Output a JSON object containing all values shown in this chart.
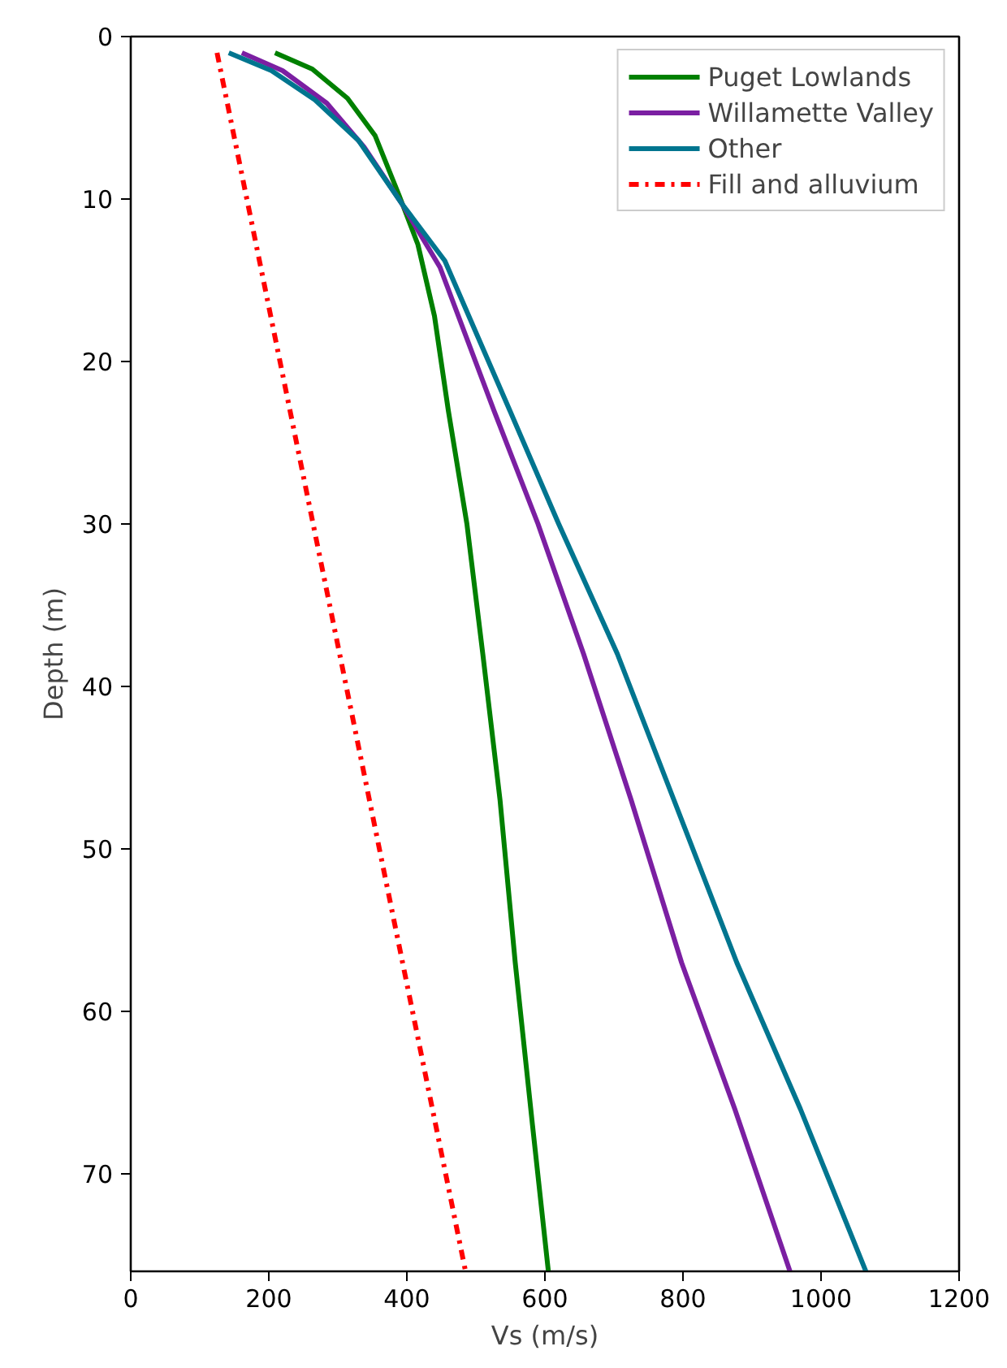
{
  "chart_data": {
    "type": "line",
    "xlabel": "Vs (m/s)",
    "ylabel": "Depth (m)",
    "xlim": [
      0,
      1200
    ],
    "xticks": [
      0,
      200,
      400,
      600,
      800,
      1000,
      1200
    ],
    "ylim": [
      76,
      0
    ],
    "yticks": [
      0,
      10,
      20,
      30,
      40,
      50,
      60,
      70
    ],
    "grid": false,
    "legend": "top right",
    "marker": "none",
    "series": [
      {
        "name": "Puget Lowlands",
        "color": "#008000",
        "line_style": "solid",
        "x": [
          209,
          263,
          314,
          354,
          389,
          416,
          440,
          460,
          487,
          510,
          535,
          557,
          582,
          605
        ],
        "values": [
          1,
          2,
          3.8,
          6.1,
          9.8,
          12.8,
          17.2,
          23,
          30,
          38,
          47,
          57,
          67,
          76
        ]
      },
      {
        "name": "Willamette Valley",
        "color": "#7b1fa2",
        "line_style": "solid",
        "x": [
          161,
          220,
          284,
          338,
          393,
          448,
          526,
          590,
          656,
          725,
          798,
          875,
          955
        ],
        "values": [
          1,
          2.1,
          4.1,
          6.8,
          10.3,
          14.2,
          23,
          30,
          38,
          47,
          57,
          66,
          76
        ]
      },
      {
        "name": "Other",
        "color": "#00758f",
        "line_style": "solid",
        "x": [
          142,
          204,
          267,
          330,
          393,
          455,
          549,
          620,
          705,
          787,
          878,
          970,
          1065
        ],
        "values": [
          1,
          2.1,
          3.9,
          6.4,
          10.3,
          13.8,
          23,
          30,
          38,
          47,
          57,
          66,
          76
        ]
      },
      {
        "name": "Fill and alluvium",
        "color": "#ff0000",
        "line_style": "dashdot",
        "x": [
          125,
          485
        ],
        "values": [
          1,
          76
        ]
      }
    ]
  }
}
